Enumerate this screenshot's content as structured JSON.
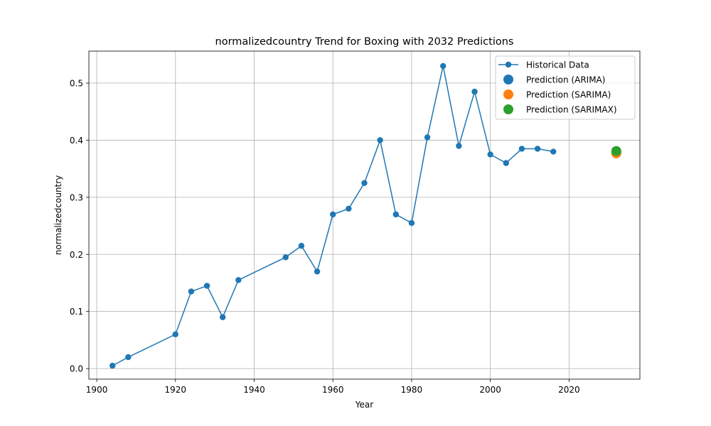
{
  "chart_data": {
    "type": "line",
    "title": "normalizedcountry Trend for Boxing with 2032 Predictions",
    "xlabel": "Year",
    "ylabel": "normalizedcountry",
    "xlim": [
      1898,
      2038
    ],
    "ylim": [
      -0.0185,
      0.556
    ],
    "x_ticks": [
      1900,
      1920,
      1940,
      1960,
      1980,
      2000,
      2020
    ],
    "y_ticks": [
      0.0,
      0.1,
      0.2,
      0.3,
      0.4,
      0.5
    ],
    "y_tick_labels": [
      "0.0",
      "0.1",
      "0.2",
      "0.3",
      "0.4",
      "0.5"
    ],
    "grid": true,
    "legend_position": "top-right",
    "series": [
      {
        "name": "Historical Data",
        "kind": "line-marker",
        "color": "#1f77b4",
        "x": [
          1904,
          1908,
          1920,
          1924,
          1928,
          1932,
          1936,
          1948,
          1952,
          1956,
          1960,
          1964,
          1968,
          1972,
          1976,
          1980,
          1984,
          1988,
          1992,
          1996,
          2000,
          2004,
          2008,
          2012,
          2016
        ],
        "y": [
          0.005,
          0.02,
          0.06,
          0.135,
          0.145,
          0.09,
          0.155,
          0.195,
          0.215,
          0.17,
          0.27,
          0.28,
          0.325,
          0.4,
          0.27,
          0.255,
          0.405,
          0.53,
          0.39,
          0.485,
          0.375,
          0.36,
          0.385,
          0.385,
          0.38
        ]
      },
      {
        "name": "Prediction (ARIMA)",
        "kind": "point",
        "color": "#1f77b4",
        "x": [
          2032
        ],
        "y": [
          0.379
        ]
      },
      {
        "name": "Prediction (SARIMA)",
        "kind": "point",
        "color": "#ff7f0e",
        "x": [
          2032
        ],
        "y": [
          0.377
        ]
      },
      {
        "name": "Prediction (SARIMAX)",
        "kind": "point",
        "color": "#2ca02c",
        "x": [
          2032
        ],
        "y": [
          0.381
        ]
      }
    ]
  }
}
